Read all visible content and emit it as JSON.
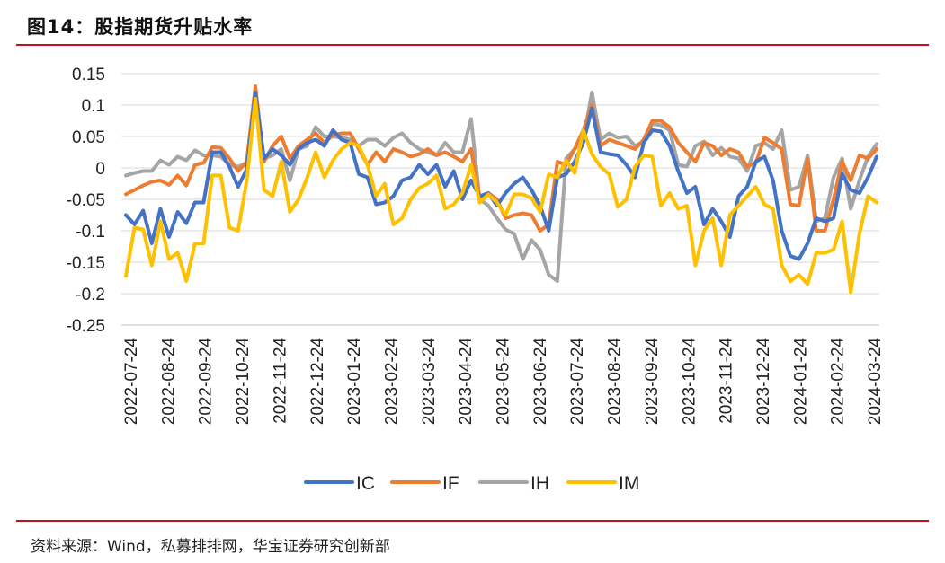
{
  "header": {
    "title": "图14：股指期货升贴水率"
  },
  "footer": {
    "source": "资料来源：Wind，私募排排网，华宝证券研究创新部"
  },
  "colors": {
    "IC": "#4472C4",
    "IF": "#ED7D31",
    "IH": "#A5A5A5",
    "IM": "#FFC000",
    "rule": "#C0111B",
    "grid": "#D9D9D9"
  },
  "chart_data": {
    "type": "line",
    "title": "",
    "xlabel": "",
    "ylabel": "",
    "ylim": [
      -0.25,
      0.15
    ],
    "yticks": [
      0.15,
      0.1,
      0.05,
      0,
      -0.05,
      -0.1,
      -0.15,
      -0.2,
      -0.25
    ],
    "ytick_labels": [
      "0.15",
      "0.1",
      "0.05",
      "0",
      "-0.05",
      "-0.1",
      "-0.15",
      "-0.2",
      "-0.25"
    ],
    "xtick_labels": [
      "2022-07-24",
      "2022-08-24",
      "2022-09-24",
      "2022-10-24",
      "2022-11-24",
      "2022-12-24",
      "2023-01-24",
      "2023-02-24",
      "2023-03-24",
      "2023-04-24",
      "2023-05-24",
      "2023-06-24",
      "2023-07-24",
      "2023-08-24",
      "2023-09-24",
      "2023-10-24",
      "2023-11-24",
      "2023-12-24",
      "2024-01-24",
      "2024-02-24",
      "2024-03-24"
    ],
    "grid": "horizontal",
    "legend_position": "bottom",
    "series": [
      {
        "name": "IC",
        "values": [
          -0.075,
          -0.09,
          -0.068,
          -0.12,
          -0.065,
          -0.11,
          -0.07,
          -0.088,
          -0.055,
          -0.055,
          0.025,
          0.025,
          0.002,
          -0.03,
          -0.002,
          0.12,
          0.015,
          0.03,
          0.02,
          0.005,
          0.03,
          0.04,
          0.045,
          0.035,
          0.06,
          0.045,
          0.04,
          -0.01,
          -0.015,
          -0.058,
          -0.055,
          -0.045,
          -0.02,
          -0.015,
          0.005,
          -0.01,
          0.005,
          -0.03,
          -0.005,
          -0.05,
          -0.02,
          -0.045,
          -0.04,
          -0.06,
          -0.04,
          -0.025,
          -0.015,
          -0.035,
          -0.06,
          -0.1,
          -0.015,
          -0.01,
          0.01,
          0.04,
          0.095,
          0.025,
          0.022,
          0.02,
          0.005,
          -0.015,
          0.04,
          0.06,
          0.058,
          0.035,
          -0.005,
          -0.04,
          -0.03,
          -0.09,
          -0.065,
          -0.085,
          -0.11,
          -0.045,
          -0.03,
          0.01,
          0.018,
          -0.02,
          -0.1,
          -0.14,
          -0.145,
          -0.12,
          -0.08,
          -0.085,
          -0.08,
          -0.01,
          -0.035,
          -0.04,
          -0.015,
          0.018
        ]
      },
      {
        "name": "IF",
        "values": [
          -0.042,
          -0.035,
          -0.028,
          -0.022,
          -0.02,
          -0.027,
          -0.012,
          -0.028,
          0.005,
          0.008,
          0.033,
          0.032,
          0.015,
          -0.005,
          0.01,
          0.13,
          0.01,
          0.035,
          0.05,
          0.015,
          0.035,
          0.045,
          0.055,
          0.04,
          0.052,
          0.055,
          0.055,
          0.03,
          0.005,
          0.025,
          0.01,
          0.03,
          0.025,
          0.018,
          0.022,
          0.03,
          0.02,
          0.025,
          0.018,
          0.01,
          0.03,
          -0.05,
          -0.04,
          -0.05,
          -0.08,
          -0.075,
          -0.072,
          -0.075,
          -0.1,
          -0.09,
          0.01,
          0.005,
          0.03,
          0.06,
          0.1,
          0.035,
          0.045,
          0.04,
          0.035,
          0.03,
          0.045,
          0.075,
          0.075,
          0.065,
          0.04,
          0.025,
          0.01,
          0.04,
          0.035,
          0.02,
          0.03,
          0.025,
          0.002,
          0.008,
          0.048,
          0.04,
          0.03,
          -0.058,
          -0.06,
          0.015,
          -0.1,
          -0.1,
          -0.05,
          0.01,
          -0.02,
          0.02,
          0.015,
          0.03
        ]
      },
      {
        "name": "IH",
        "values": [
          -0.012,
          -0.008,
          -0.005,
          -0.005,
          0.012,
          0.005,
          0.018,
          0.012,
          0.028,
          0.02,
          0.02,
          0.018,
          0.005,
          0.002,
          0.008,
          0.105,
          0.015,
          0.02,
          0.03,
          -0.02,
          0.03,
          0.035,
          0.065,
          0.05,
          0.05,
          0.048,
          0.045,
          0.035,
          0.045,
          0.045,
          0.035,
          0.048,
          0.055,
          0.04,
          0.03,
          0.025,
          0.02,
          0.04,
          0.025,
          0.025,
          0.078,
          -0.05,
          -0.06,
          -0.08,
          -0.098,
          -0.105,
          -0.145,
          -0.115,
          -0.13,
          -0.17,
          -0.18,
          0.015,
          0.03,
          0.045,
          0.12,
          0.045,
          0.055,
          0.048,
          0.05,
          0.035,
          0.042,
          0.07,
          0.068,
          0.06,
          0.005,
          0.002,
          0.035,
          0.042,
          0.02,
          0.032,
          0.018,
          0.015,
          -0.005,
          0.035,
          0.04,
          0.03,
          0.06,
          -0.035,
          -0.03,
          0.02,
          -0.085,
          -0.08,
          -0.015,
          0.015,
          -0.065,
          -0.02,
          0.018,
          0.038
        ]
      },
      {
        "name": "IM",
        "values": [
          -0.172,
          -0.095,
          -0.098,
          -0.155,
          -0.085,
          -0.145,
          -0.135,
          -0.18,
          -0.12,
          -0.12,
          -0.012,
          -0.012,
          -0.095,
          -0.1,
          -0.02,
          0.11,
          -0.035,
          -0.045,
          0.01,
          -0.07,
          -0.05,
          -0.015,
          0.025,
          -0.015,
          0.012,
          0.03,
          0.04,
          0.035,
          0.005,
          -0.045,
          -0.025,
          -0.09,
          -0.08,
          -0.05,
          -0.032,
          -0.025,
          -0.012,
          -0.065,
          -0.058,
          -0.04,
          0.005,
          -0.055,
          -0.042,
          -0.055,
          -0.075,
          -0.042,
          -0.042,
          -0.048,
          -0.07,
          -0.01,
          -0.015,
          0.012,
          -0.008,
          0.06,
          0.022,
          0.002,
          -0.01,
          -0.062,
          -0.05,
          0.002,
          0.02,
          0.018,
          -0.06,
          -0.04,
          -0.065,
          -0.06,
          -0.155,
          -0.1,
          -0.08,
          -0.155,
          -0.075,
          -0.06,
          -0.045,
          -0.03,
          -0.058,
          -0.065,
          -0.155,
          -0.18,
          -0.17,
          -0.185,
          -0.135,
          -0.135,
          -0.13,
          -0.085,
          -0.198,
          -0.105,
          -0.045,
          -0.055
        ]
      }
    ]
  }
}
